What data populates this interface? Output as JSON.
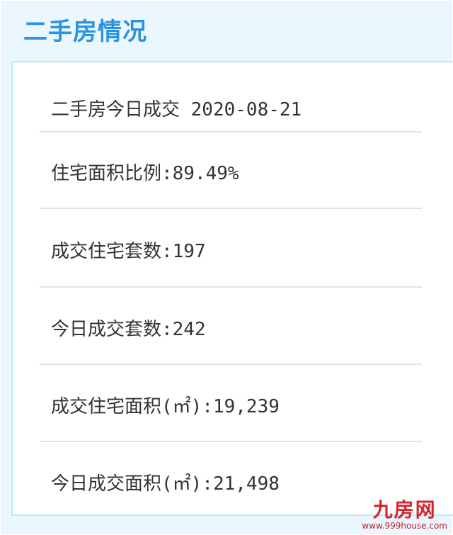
{
  "title": "二手房情况",
  "rows": [
    {
      "text": "二手房今日成交 2020-08-21"
    },
    {
      "text": "住宅面积比例:89.49%"
    },
    {
      "text": "成交住宅套数:197"
    },
    {
      "text": "今日成交套数:242"
    },
    {
      "text": "成交住宅面积(㎡):19,239"
    },
    {
      "text": "今日成交面积(㎡):21,498"
    }
  ],
  "watermark": {
    "logo": "九房网",
    "url": "www.999house.com"
  },
  "colors": {
    "title": "#2a93e2",
    "background": "#eaf7fe",
    "panel_border": "#bfe7f8",
    "watermark": "#d3242b"
  }
}
